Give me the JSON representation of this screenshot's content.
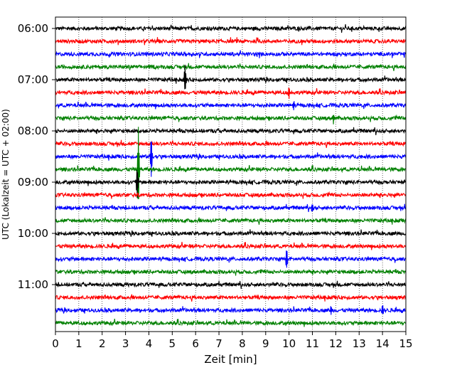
{
  "chart_data": {
    "type": "line",
    "title": "",
    "xlabel": "Zeit  [min]",
    "ylabel": "UTC (Lokalzeit = UTC + 02:00)",
    "xlim": [
      0,
      15
    ],
    "x_ticks": [
      "0",
      "1",
      "2",
      "3",
      "4",
      "5",
      "6",
      "7",
      "8",
      "9",
      "10",
      "11",
      "12",
      "13",
      "14",
      "15"
    ],
    "y_tick_labels": [
      "06:00",
      "07:00",
      "08:00",
      "09:00",
      "10:00",
      "11:00"
    ],
    "grid": "vertical-dotted",
    "trace_interval_minutes": 15,
    "traces": [
      {
        "start": "06:00",
        "color": "#000000"
      },
      {
        "start": "06:15",
        "color": "#ff0000"
      },
      {
        "start": "06:30",
        "color": "#0000ff"
      },
      {
        "start": "06:45",
        "color": "#008000"
      },
      {
        "start": "07:00",
        "color": "#000000",
        "events": [
          {
            "t": 5.55,
            "amp": 1.2
          }
        ]
      },
      {
        "start": "07:15",
        "color": "#ff0000",
        "events": [
          {
            "t": 10.0,
            "amp": 0.4
          }
        ]
      },
      {
        "start": "07:30",
        "color": "#0000ff",
        "events": [
          {
            "t": 10.2,
            "amp": 0.45
          }
        ]
      },
      {
        "start": "07:45",
        "color": "#008000",
        "events": [
          {
            "t": 11.9,
            "amp": 0.35
          }
        ]
      },
      {
        "start": "08:00",
        "color": "#000000"
      },
      {
        "start": "08:15",
        "color": "#ff0000"
      },
      {
        "start": "08:30",
        "color": "#0000ff",
        "events": [
          {
            "t": 4.1,
            "amp": 1.6
          }
        ]
      },
      {
        "start": "08:45",
        "color": "#008000",
        "events": [
          {
            "t": 3.55,
            "amp": 3.2
          }
        ]
      },
      {
        "start": "09:00",
        "color": "#000000",
        "events": [
          {
            "t": 3.5,
            "amp": 1.2
          }
        ]
      },
      {
        "start": "09:15",
        "color": "#ff0000"
      },
      {
        "start": "09:30",
        "color": "#0000ff",
        "events": [
          {
            "t": 11.0,
            "amp": 0.4
          }
        ]
      },
      {
        "start": "09:45",
        "color": "#008000"
      },
      {
        "start": "10:00",
        "color": "#000000"
      },
      {
        "start": "10:15",
        "color": "#ff0000"
      },
      {
        "start": "10:30",
        "color": "#0000ff",
        "events": [
          {
            "t": 9.9,
            "amp": 0.8
          }
        ]
      },
      {
        "start": "10:45",
        "color": "#008000"
      },
      {
        "start": "11:00",
        "color": "#000000"
      },
      {
        "start": "11:15",
        "color": "#ff0000"
      },
      {
        "start": "11:30",
        "color": "#0000ff",
        "events": [
          {
            "t": 11.8,
            "amp": 0.45
          },
          {
            "t": 14.0,
            "amp": 0.4
          }
        ]
      },
      {
        "start": "11:45",
        "color": "#008000"
      }
    ]
  }
}
